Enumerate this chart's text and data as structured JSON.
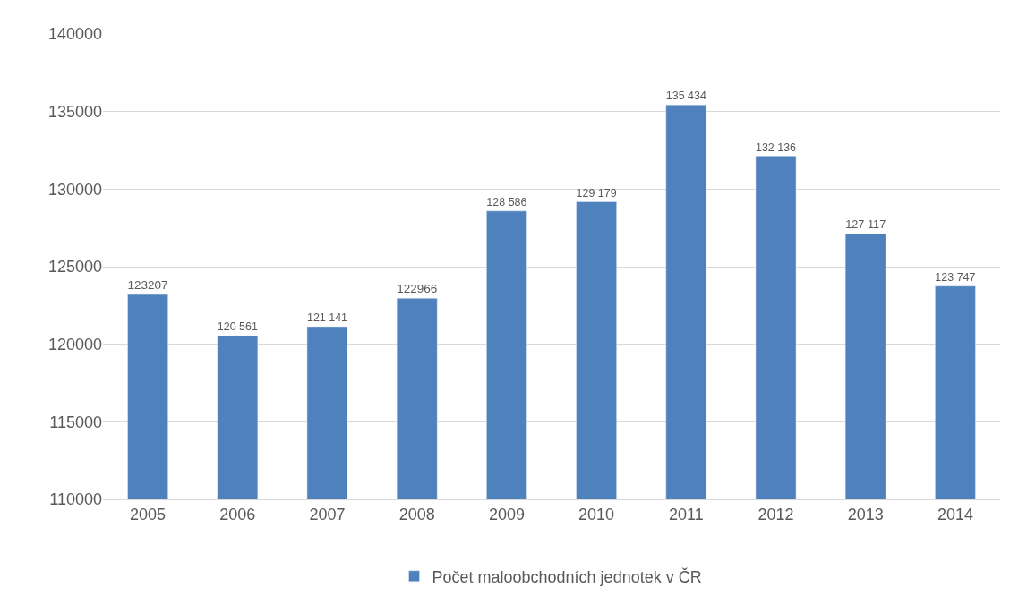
{
  "chart_data": {
    "type": "bar",
    "categories": [
      "2005",
      "2006",
      "2007",
      "2008",
      "2009",
      "2010",
      "2011",
      "2012",
      "2013",
      "2014"
    ],
    "series": [
      {
        "name": "Počet maloobchodních jednotek v ČR",
        "color": "#4f81bd",
        "values": [
          123207,
          120561,
          121141,
          122966,
          128586,
          129179,
          135434,
          132136,
          127117,
          123747
        ],
        "value_labels": [
          "123207",
          "120 561",
          "121 141",
          "122966",
          "128 586",
          "129 179",
          "135 434",
          "132 136",
          "127 117",
          "123 747"
        ]
      }
    ],
    "ylim": [
      110000,
      140000
    ],
    "yticks": [
      110000,
      115000,
      120000,
      125000,
      130000,
      135000,
      140000
    ],
    "grid": "y",
    "legend": "bottom"
  }
}
